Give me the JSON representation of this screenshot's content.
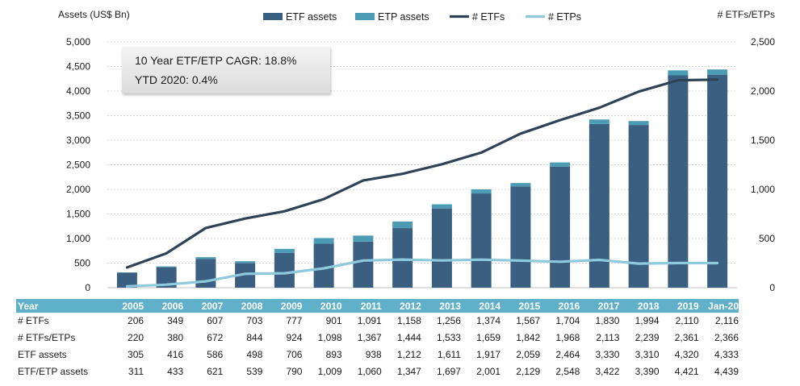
{
  "chart_data": {
    "type": "bar+line",
    "ylabel_left": "Assets (US$ Bn)",
    "ylabel_right": "# ETFs/ETPs",
    "ylim_left": [
      0,
      5000
    ],
    "ylim_right": [
      0,
      2500
    ],
    "yticks_left": [
      "0",
      "500",
      "1,000",
      "1,500",
      "2,000",
      "2,500",
      "3,000",
      "3,500",
      "4,000",
      "4,500",
      "5,000"
    ],
    "yticks_right": [
      "0",
      "500",
      "1,000",
      "1,500",
      "2,000",
      "2,500"
    ],
    "categories": [
      "2005",
      "2006",
      "2007",
      "2008",
      "2009",
      "2010",
      "2011",
      "2012",
      "2013",
      "2014",
      "2015",
      "2016",
      "2017",
      "2018",
      "2019",
      "Jan-20"
    ],
    "legend": [
      "ETF assets",
      "ETP assets",
      "# ETFs",
      "# ETPs"
    ],
    "colors": {
      "etf_assets": "#3a5f80",
      "etp_assets": "#4a9bb3",
      "etfs_line": "#2f4356",
      "etps_line": "#8ec9dc"
    },
    "series": [
      {
        "name": "ETF assets",
        "type": "bar",
        "axis": "left",
        "values": [
          305,
          416,
          586,
          498,
          706,
          893,
          938,
          1212,
          1611,
          1917,
          2059,
          2464,
          3330,
          3310,
          4320,
          4333
        ]
      },
      {
        "name": "ETP assets",
        "type": "bar-stacked",
        "axis": "left",
        "values": [
          6,
          17,
          35,
          41,
          84,
          116,
          122,
          135,
          86,
          84,
          70,
          84,
          92,
          80,
          101,
          106
        ]
      },
      {
        "name": "# ETFs",
        "type": "line",
        "axis": "right",
        "values": [
          206,
          349,
          607,
          703,
          777,
          901,
          1091,
          1158,
          1256,
          1374,
          1567,
          1704,
          1830,
          1994,
          2110,
          2116
        ]
      },
      {
        "name": "# ETPs",
        "type": "line",
        "axis": "right",
        "values": [
          14,
          31,
          65,
          141,
          147,
          197,
          276,
          286,
          277,
          285,
          275,
          264,
          283,
          245,
          251,
          250
        ]
      }
    ]
  },
  "annotation": {
    "cagr": "10 Year ETF/ETP CAGR: 18.8%",
    "ytd": "YTD 2020: 0.4%"
  },
  "table": {
    "header_label": "Year",
    "years": [
      "2005",
      "2006",
      "2007",
      "2008",
      "2009",
      "2010",
      "2011",
      "2012",
      "2013",
      "2014",
      "2015",
      "2016",
      "2017",
      "2018",
      "2019",
      "Jan-20"
    ],
    "rows": [
      {
        "label": "# ETFs",
        "values": [
          "206",
          "349",
          "607",
          "703",
          "777",
          "901",
          "1,091",
          "1,158",
          "1,256",
          "1,374",
          "1,567",
          "1,704",
          "1,830",
          "1,994",
          "2,110",
          "2,116"
        ]
      },
      {
        "label": "# ETFs/ETPs",
        "values": [
          "220",
          "380",
          "672",
          "844",
          "924",
          "1,098",
          "1,367",
          "1,444",
          "1,533",
          "1,659",
          "1,842",
          "1,968",
          "2,113",
          "2,239",
          "2,361",
          "2,366"
        ]
      },
      {
        "label": "ETF assets",
        "values": [
          "305",
          "416",
          "586",
          "498",
          "706",
          "893",
          "938",
          "1,212",
          "1,611",
          "1,917",
          "2,059",
          "2,464",
          "3,330",
          "3,310",
          "4,320",
          "4,333"
        ]
      },
      {
        "label": "ETF/ETP assets",
        "values": [
          "311",
          "433",
          "621",
          "539",
          "790",
          "1,009",
          "1,060",
          "1,347",
          "1,697",
          "2,001",
          "2,129",
          "2,548",
          "3,422",
          "3,390",
          "4,421",
          "4,439"
        ]
      }
    ]
  }
}
